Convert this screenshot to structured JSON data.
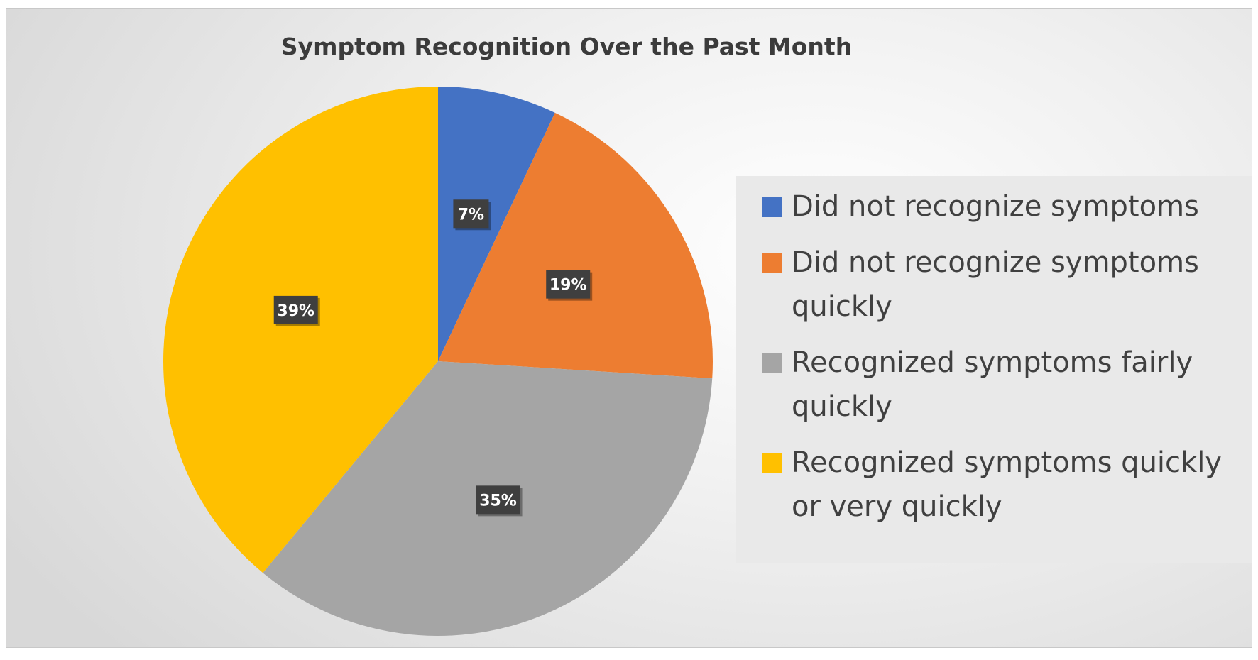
{
  "chart_data": {
    "type": "pie",
    "title": "Symptom Recognition Over the Past Month",
    "slices": [
      {
        "label": "Did not recognize symptoms",
        "value": 7,
        "display": "7%",
        "color": "#4472C4"
      },
      {
        "label": "Did not recognize symptoms quickly",
        "value": 19,
        "display": "19%",
        "color": "#ED7D31"
      },
      {
        "label": "Recognized symptoms fairly quickly",
        "value": 35,
        "display": "35%",
        "color": "#A5A5A5"
      },
      {
        "label": "Recognized symptoms quickly or very quickly",
        "value": 39,
        "display": "39%",
        "color": "#FFC000"
      }
    ],
    "legend_position": "right",
    "data_labels": true
  }
}
